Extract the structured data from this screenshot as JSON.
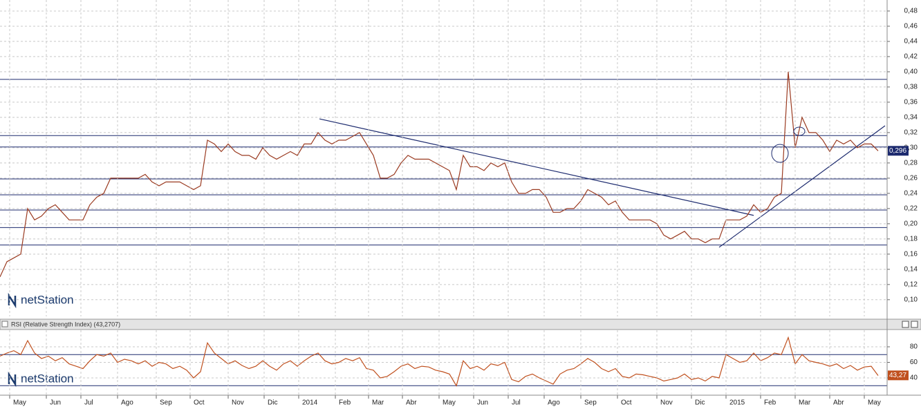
{
  "chart_data": [
    {
      "type": "line",
      "watermark": "netStation",
      "x": [
        0,
        1,
        2,
        3,
        4,
        5,
        6,
        7,
        8,
        9,
        10,
        11,
        12,
        13,
        14,
        15,
        16,
        17,
        18,
        19,
        20,
        21,
        22,
        23,
        24,
        25,
        26,
        27,
        28,
        29,
        30,
        31,
        32,
        33,
        34,
        35,
        36,
        37,
        38,
        39,
        40,
        41,
        42,
        43,
        44,
        45,
        46,
        47,
        48,
        49,
        50,
        51,
        52,
        53,
        54,
        55,
        56,
        57,
        58,
        59,
        60,
        61,
        62,
        63,
        64,
        65,
        66,
        67,
        68,
        69,
        70,
        71,
        72,
        73,
        74,
        75,
        76,
        77,
        78,
        79,
        80,
        81,
        82,
        83,
        84,
        85,
        86,
        87,
        88,
        89,
        90,
        91,
        92,
        93,
        94,
        95,
        96,
        97,
        98,
        99,
        100,
        101,
        102,
        103,
        104,
        105,
        106,
        107,
        108,
        109,
        110,
        111,
        112,
        113,
        114,
        115,
        116,
        117,
        118,
        119,
        120,
        121,
        122,
        123,
        124,
        125,
        126,
        127
      ],
      "series": [
        {
          "color": "#9a3a20",
          "values": [
            0.13,
            0.15,
            0.155,
            0.16,
            0.22,
            0.205,
            0.21,
            0.22,
            0.225,
            0.215,
            0.205,
            0.205,
            0.205,
            0.225,
            0.235,
            0.24,
            0.26,
            0.26,
            0.26,
            0.26,
            0.26,
            0.265,
            0.255,
            0.25,
            0.255,
            0.255,
            0.255,
            0.25,
            0.245,
            0.25,
            0.31,
            0.305,
            0.295,
            0.305,
            0.295,
            0.29,
            0.29,
            0.285,
            0.3,
            0.29,
            0.285,
            0.29,
            0.295,
            0.29,
            0.305,
            0.305,
            0.32,
            0.31,
            0.305,
            0.31,
            0.31,
            0.315,
            0.32,
            0.305,
            0.29,
            0.26,
            0.26,
            0.265,
            0.28,
            0.29,
            0.285,
            0.285,
            0.285,
            0.28,
            0.275,
            0.27,
            0.245,
            0.29,
            0.275,
            0.275,
            0.27,
            0.28,
            0.275,
            0.28,
            0.255,
            0.24,
            0.24,
            0.245,
            0.245,
            0.235,
            0.215,
            0.215,
            0.22,
            0.22,
            0.23,
            0.245,
            0.24,
            0.235,
            0.225,
            0.23,
            0.215,
            0.205,
            0.205,
            0.205,
            0.205,
            0.2,
            0.185,
            0.18,
            0.185,
            0.19,
            0.18,
            0.18,
            0.175,
            0.18,
            0.18,
            0.205,
            0.205,
            0.205,
            0.21,
            0.225,
            0.215,
            0.22,
            0.235,
            0.24,
            0.4,
            0.3,
            0.34,
            0.32,
            0.32,
            0.31,
            0.295,
            0.31,
            0.305,
            0.31,
            0.3,
            0.305,
            0.305,
            0.296
          ]
        }
      ],
      "ylim": [
        0.078,
        0.4945
      ],
      "yticks": [
        {
          "value": 0.1,
          "label": "0,10"
        },
        {
          "value": 0.12,
          "label": "0,12"
        },
        {
          "value": 0.14,
          "label": "0,14"
        },
        {
          "value": 0.16,
          "label": "0,16"
        },
        {
          "value": 0.18,
          "label": "0,18"
        },
        {
          "value": 0.2,
          "label": "0,20"
        },
        {
          "value": 0.22,
          "label": "0,22"
        },
        {
          "value": 0.24,
          "label": "0,24"
        },
        {
          "value": 0.26,
          "label": "0,26"
        },
        {
          "value": 0.28,
          "label": "0,28"
        },
        {
          "value": 0.3,
          "label": "0,30"
        },
        {
          "value": 0.32,
          "label": "0,32"
        },
        {
          "value": 0.34,
          "label": "0,34"
        },
        {
          "value": 0.36,
          "label": "0,36"
        },
        {
          "value": 0.38,
          "label": "0,38"
        },
        {
          "value": 0.4,
          "label": "0,40"
        },
        {
          "value": 0.42,
          "label": "0,42"
        },
        {
          "value": 0.44,
          "label": "0,44"
        },
        {
          "value": 0.46,
          "label": "0,46"
        },
        {
          "value": 0.48,
          "label": "0,48"
        }
      ],
      "xlim": [
        0,
        128.3
      ],
      "xticks": [
        {
          "value": 1.4,
          "label": "May"
        },
        {
          "value": 6.7,
          "label": "Jun"
        },
        {
          "value": 11.7,
          "label": "Jul"
        },
        {
          "value": 17,
          "label": "Ago"
        },
        {
          "value": 22.6,
          "label": "Sep"
        },
        {
          "value": 27.5,
          "label": "Oct"
        },
        {
          "value": 33,
          "label": "Nov"
        },
        {
          "value": 38.2,
          "label": "Dic"
        },
        {
          "value": 43.2,
          "label": "2014"
        },
        {
          "value": 48.5,
          "label": "Feb"
        },
        {
          "value": 53.3,
          "label": "Mar"
        },
        {
          "value": 58.2,
          "label": "Abr"
        },
        {
          "value": 63.5,
          "label": "May"
        },
        {
          "value": 68.5,
          "label": "Jun"
        },
        {
          "value": 73.5,
          "label": "Jul"
        },
        {
          "value": 78.7,
          "label": "Ago"
        },
        {
          "value": 84,
          "label": "Sep"
        },
        {
          "value": 89.3,
          "label": "Oct"
        },
        {
          "value": 95,
          "label": "Nov"
        },
        {
          "value": 100,
          "label": "Dic"
        },
        {
          "value": 105,
          "label": "2015"
        },
        {
          "value": 110,
          "label": "Feb"
        },
        {
          "value": 115,
          "label": "Mar"
        },
        {
          "value": 120,
          "label": "Abr"
        },
        {
          "value": 125,
          "label": "May"
        }
      ],
      "hlines": [
        0.39,
        0.316,
        0.301,
        0.259,
        0.238,
        0.218,
        0.195,
        0.172
      ],
      "trendlines": [
        {
          "x": [
            46.2,
            109
          ],
          "y": [
            0.338,
            0.211
          ]
        },
        {
          "x": [
            104,
            128
          ],
          "y": [
            0.169,
            0.329
          ]
        }
      ],
      "last": {
        "value": 0.296,
        "label": "0,296"
      },
      "grid": true
    },
    {
      "type": "line",
      "title": "RSI (Relative Strength Index) (43,2707)",
      "watermark": "netStation",
      "x": [
        0,
        1,
        2,
        3,
        4,
        5,
        6,
        7,
        8,
        9,
        10,
        11,
        12,
        13,
        14,
        15,
        16,
        17,
        18,
        19,
        20,
        21,
        22,
        23,
        24,
        25,
        26,
        27,
        28,
        29,
        30,
        31,
        32,
        33,
        34,
        35,
        36,
        37,
        38,
        39,
        40,
        41,
        42,
        43,
        44,
        45,
        46,
        47,
        48,
        49,
        50,
        51,
        52,
        53,
        54,
        55,
        56,
        57,
        58,
        59,
        60,
        61,
        62,
        63,
        64,
        65,
        66,
        67,
        68,
        69,
        70,
        71,
        72,
        73,
        74,
        75,
        76,
        77,
        78,
        79,
        80,
        81,
        82,
        83,
        84,
        85,
        86,
        87,
        88,
        89,
        90,
        91,
        92,
        93,
        94,
        95,
        96,
        97,
        98,
        99,
        100,
        101,
        102,
        103,
        104,
        105,
        106,
        107,
        108,
        109,
        110,
        111,
        112,
        113,
        114,
        115,
        116,
        117,
        118,
        119,
        120,
        121,
        122,
        123,
        124,
        125,
        126,
        127
      ],
      "series": [
        {
          "color": "#c0501e",
          "values": [
            68,
            72,
            75,
            70,
            88,
            72,
            65,
            68,
            62,
            66,
            58,
            55,
            52,
            62,
            70,
            68,
            72,
            60,
            64,
            62,
            58,
            62,
            55,
            60,
            58,
            52,
            55,
            50,
            40,
            48,
            85,
            72,
            65,
            58,
            62,
            56,
            52,
            55,
            62,
            55,
            50,
            58,
            62,
            55,
            62,
            68,
            72,
            62,
            58,
            60,
            65,
            62,
            66,
            52,
            50,
            40,
            42,
            48,
            55,
            58,
            52,
            55,
            54,
            50,
            48,
            45,
            30,
            62,
            52,
            55,
            50,
            58,
            56,
            60,
            38,
            35,
            42,
            45,
            40,
            36,
            32,
            45,
            50,
            52,
            58,
            65,
            60,
            52,
            48,
            52,
            42,
            40,
            45,
            44,
            42,
            40,
            36,
            38,
            40,
            45,
            38,
            40,
            36,
            42,
            40,
            70,
            65,
            60,
            62,
            72,
            62,
            66,
            72,
            70,
            92,
            58,
            70,
            62,
            60,
            58,
            55,
            58,
            52,
            56,
            50,
            54,
            55,
            43
          ]
        }
      ],
      "ylim": [
        17.8,
        101.3
      ],
      "yticks": [
        40,
        60,
        80
      ],
      "levels": [
        70,
        30
      ],
      "xlim": [
        0,
        128.3
      ],
      "last": {
        "value": 43.27,
        "label": "43,27"
      },
      "grid": true
    }
  ]
}
